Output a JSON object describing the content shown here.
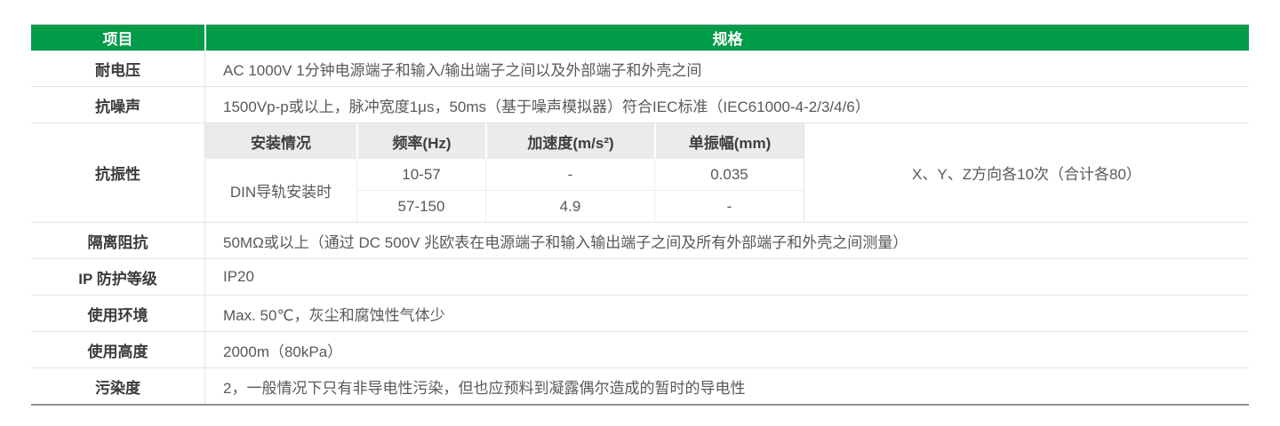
{
  "table": {
    "colors": {
      "accent_green": "#009b48",
      "subheader_bg": "#ebebeb",
      "label_text": "#3b3b3b",
      "value_text": "#595959",
      "grid_line": "#e4e4e4",
      "bottom_border": "#8f8f8f"
    },
    "header": {
      "item": "项目",
      "spec": "规格"
    },
    "rows": {
      "voltage": {
        "label": "耐电压",
        "value": "AC 1000V 1分钟电源端子和输入/输出端子之间以及外部端子和外壳之间"
      },
      "noise": {
        "label": "抗噪声",
        "value": "1500Vp-p或以上，脉冲宽度1μs，50ms（基于噪声模拟器）符合IEC标准（IEC61000-4-2/3/4/6）"
      },
      "vibration": {
        "label": "抗振性",
        "subtable": {
          "headers": [
            "安装情况",
            "频率(Hz)",
            "加速度(m/s²)",
            "单振幅(mm)"
          ],
          "install": "DIN导轨安装时",
          "rows": [
            [
              "10-57",
              "-",
              "0.035"
            ],
            [
              "57-150",
              "4.9",
              "-"
            ]
          ]
        },
        "note": "X、Y、Z方向各10次（合计各80）"
      },
      "isolation": {
        "label": "隔离阻抗",
        "value": "50MΩ或以上（通过 DC 500V 兆欧表在电源端子和输入输出端子之间及所有外部端子和外壳之间测量）"
      },
      "ip": {
        "label": "IP 防护等级",
        "value": "IP20"
      },
      "environment": {
        "label": "使用环境",
        "value": "Max. 50℃，灰尘和腐蚀性气体少"
      },
      "altitude": {
        "label": "使用高度",
        "value": "2000m（80kPa）"
      },
      "pollution": {
        "label": "污染度",
        "value": "2，一般情况下只有非导电性污染，但也应预料到凝露偶尔造成的暂时的导电性"
      }
    }
  }
}
